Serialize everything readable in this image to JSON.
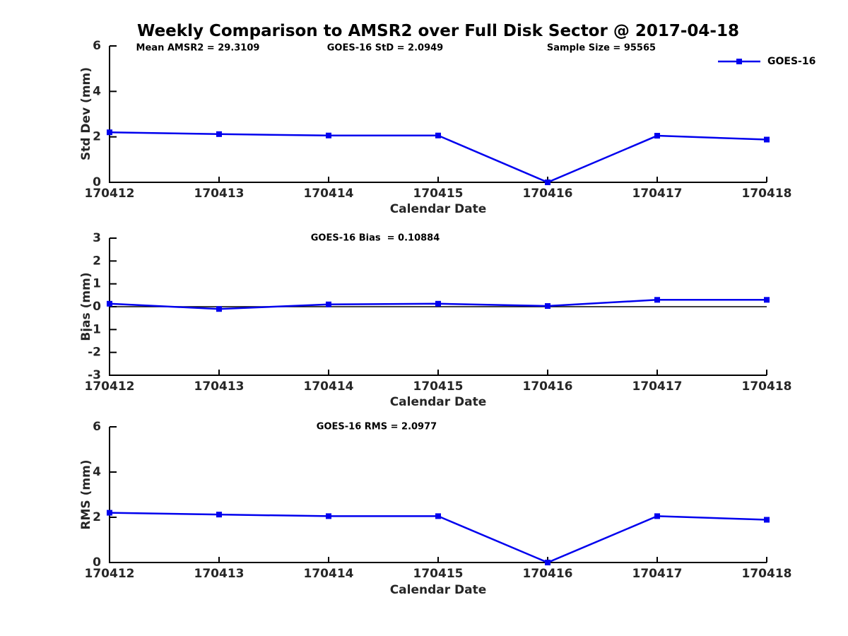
{
  "title": "Weekly Comparison to AMSR2 over Full Disk Sector @ 2017-04-18",
  "legend": {
    "label": "GOES-16",
    "position": "upper right"
  },
  "colors": {
    "line": "#0000EE",
    "axis": "#000000",
    "tick_label": "#262626",
    "text": "#000000",
    "background": "#ffffff"
  },
  "chart_data": [
    {
      "type": "line",
      "name": "std-dev-subplot",
      "categories": [
        "170412",
        "170413",
        "170414",
        "170415",
        "170416",
        "170417",
        "170418"
      ],
      "series": [
        {
          "name": "GOES-16",
          "values": [
            2.2,
            2.12,
            2.06,
            2.06,
            0.0,
            2.05,
            1.88
          ]
        }
      ],
      "xlabel": "Calendar Date",
      "ylabel": "Std Dev (mm)",
      "ylim": [
        0,
        6
      ],
      "yticks": [
        0,
        2,
        4,
        6
      ],
      "grid": false,
      "zero_line": false,
      "legend_position": "upper right",
      "annotations": [
        {
          "text": "Mean AMSR2 = 29.3109"
        },
        {
          "text": "GOES-16 StD = 2.0949"
        },
        {
          "text": "Sample Size = 95565"
        }
      ]
    },
    {
      "type": "line",
      "name": "bias-subplot",
      "categories": [
        "170412",
        "170413",
        "170414",
        "170415",
        "170416",
        "170417",
        "170418"
      ],
      "series": [
        {
          "name": "GOES-16",
          "values": [
            0.13,
            -0.1,
            0.1,
            0.13,
            0.03,
            0.3,
            0.3
          ]
        }
      ],
      "xlabel": "Calendar Date",
      "ylabel": "Bias (mm)",
      "ylim": [
        -3,
        3
      ],
      "yticks": [
        3,
        2,
        1,
        0,
        -1,
        -2,
        -3
      ],
      "grid": false,
      "zero_line": true,
      "annotations": [
        {
          "text": "GOES-16 Bias  = 0.10884"
        }
      ]
    },
    {
      "type": "line",
      "name": "rms-subplot",
      "categories": [
        "170412",
        "170413",
        "170414",
        "170415",
        "170416",
        "170417",
        "170418"
      ],
      "series": [
        {
          "name": "GOES-16",
          "values": [
            2.2,
            2.12,
            2.05,
            2.05,
            0.0,
            2.05,
            1.89
          ]
        }
      ],
      "xlabel": "Calendar Date",
      "ylabel": "RMS (mm)",
      "ylim": [
        0,
        6
      ],
      "yticks": [
        0,
        2,
        4,
        6
      ],
      "grid": false,
      "zero_line": false,
      "annotations": [
        {
          "text": "GOES-16 RMS = 2.0977"
        }
      ]
    }
  ]
}
